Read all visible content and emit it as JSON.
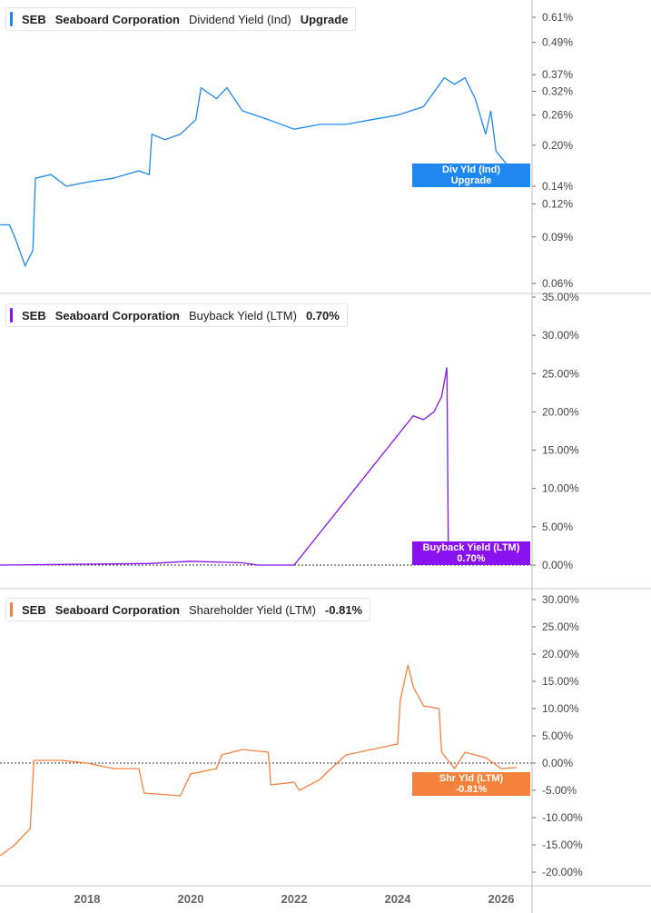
{
  "chart_data": [
    {
      "type": "line",
      "ticker": "SEB",
      "company": "Seaboard Corporation",
      "metric": "Dividend Yield (Ind)",
      "value_label": "Upgrade",
      "color": "#1e88f0",
      "scale": "log",
      "ylim": [
        0.06,
        0.61
      ],
      "yticks": [
        "0.61%",
        "0.49%",
        "0.37%",
        "0.32%",
        "0.26%",
        "0.20%",
        "0.14%",
        "0.12%",
        "0.09%",
        "0.06%"
      ],
      "tag": [
        "Div Yld (Ind)",
        "Upgrade"
      ],
      "points": [
        [
          2016.32,
          0.1
        ],
        [
          2016.5,
          0.1
        ],
        [
          2016.6,
          0.09
        ],
        [
          2016.8,
          0.07
        ],
        [
          2016.95,
          0.08
        ],
        [
          2017.0,
          0.15
        ],
        [
          2017.3,
          0.155
        ],
        [
          2017.6,
          0.14
        ],
        [
          2018,
          0.145
        ],
        [
          2018.5,
          0.15
        ],
        [
          2019,
          0.16
        ],
        [
          2019.2,
          0.155
        ],
        [
          2019.25,
          0.22
        ],
        [
          2019.5,
          0.21
        ],
        [
          2019.8,
          0.22
        ],
        [
          2020.1,
          0.25
        ],
        [
          2020.2,
          0.33
        ],
        [
          2020.5,
          0.3
        ],
        [
          2020.7,
          0.33
        ],
        [
          2021,
          0.27
        ],
        [
          2021.5,
          0.25
        ],
        [
          2022,
          0.23
        ],
        [
          2022.5,
          0.24
        ],
        [
          2023,
          0.24
        ],
        [
          2023.5,
          0.25
        ],
        [
          2024,
          0.26
        ],
        [
          2024.5,
          0.28
        ],
        [
          2024.9,
          0.36
        ],
        [
          2025.1,
          0.34
        ],
        [
          2025.3,
          0.36
        ],
        [
          2025.5,
          0.3
        ],
        [
          2025.7,
          0.22
        ],
        [
          2025.8,
          0.27
        ],
        [
          2025.9,
          0.19
        ],
        [
          2026.1,
          0.17
        ],
        [
          2026.3,
          0.15
        ]
      ]
    },
    {
      "type": "line",
      "ticker": "SEB",
      "company": "Seaboard Corporation",
      "metric": "Buyback Yield (LTM)",
      "value_label": "0.70%",
      "color": "#8a12f0",
      "ylim": [
        0,
        35
      ],
      "yticks": [
        "35.00%",
        "30.00%",
        "25.00%",
        "20.00%",
        "15.00%",
        "10.00%",
        "5.00%",
        "0.00%"
      ],
      "tag": [
        "Buyback Yield (LTM)",
        "0.70%"
      ],
      "points": [
        [
          2016.32,
          0
        ],
        [
          2019.2,
          0.2
        ],
        [
          2020,
          0.5
        ],
        [
          2021,
          0.3
        ],
        [
          2021.3,
          0
        ],
        [
          2022,
          0
        ],
        [
          2024.1,
          17.8
        ],
        [
          2024.3,
          19.5
        ],
        [
          2024.5,
          19
        ],
        [
          2024.7,
          20
        ],
        [
          2024.85,
          22
        ],
        [
          2024.95,
          25.8
        ],
        [
          2024.98,
          0.5
        ],
        [
          2025.5,
          0.5
        ],
        [
          2025.6,
          1.2
        ],
        [
          2025.8,
          1.5
        ],
        [
          2026,
          0.9
        ],
        [
          2026.3,
          0.7
        ]
      ]
    },
    {
      "type": "line",
      "ticker": "SEB",
      "company": "Seaboard Corporation",
      "metric": "Shareholder Yield (LTM)",
      "value_label": "-0.81%",
      "color": "#f5823c",
      "ylim": [
        -20,
        30
      ],
      "yticks": [
        "30.00%",
        "25.00%",
        "20.00%",
        "15.00%",
        "10.00%",
        "5.00%",
        "0.00%",
        "-5.00%",
        "-10.00%",
        "-15.00%",
        "-20.00%"
      ],
      "tag": [
        "Shr Yld (LTM)",
        "-0.81%"
      ],
      "points": [
        [
          2016.32,
          -17
        ],
        [
          2016.6,
          -15
        ],
        [
          2016.9,
          -12
        ],
        [
          2016.97,
          0.5
        ],
        [
          2017.5,
          0.5
        ],
        [
          2018,
          0
        ],
        [
          2018.5,
          -1
        ],
        [
          2019,
          -1
        ],
        [
          2019.1,
          -5.5
        ],
        [
          2019.8,
          -6
        ],
        [
          2020,
          -2
        ],
        [
          2020.5,
          -1
        ],
        [
          2020.6,
          1.5
        ],
        [
          2021,
          2.5
        ],
        [
          2021.5,
          2
        ],
        [
          2021.55,
          -4
        ],
        [
          2022,
          -3.5
        ],
        [
          2022.1,
          -5
        ],
        [
          2022.5,
          -3
        ],
        [
          2022.6,
          -2
        ],
        [
          2023,
          1.5
        ],
        [
          2023.5,
          2.5
        ],
        [
          2024,
          3.5
        ],
        [
          2024.05,
          11.5
        ],
        [
          2024.2,
          18
        ],
        [
          2024.3,
          14
        ],
        [
          2024.5,
          10.5
        ],
        [
          2024.8,
          10
        ],
        [
          2024.85,
          2
        ],
        [
          2025.1,
          -1
        ],
        [
          2025.3,
          2
        ],
        [
          2025.7,
          1
        ],
        [
          2026,
          -1
        ],
        [
          2026.3,
          -0.81
        ]
      ]
    }
  ],
  "xaxis": {
    "ticks": [
      "2018",
      "2020",
      "2022",
      "2024",
      "2026"
    ]
  }
}
